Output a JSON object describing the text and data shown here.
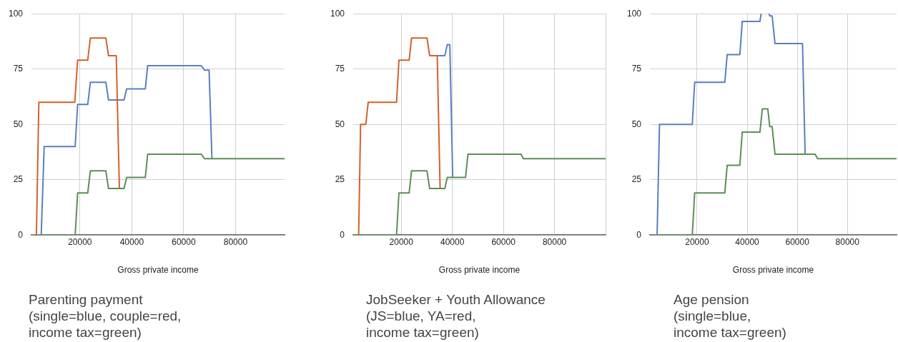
{
  "chart_data": [
    {
      "type": "line",
      "title": "Parenting payment\n(single=blue, couple=red,\nincome tax=green)",
      "xlabel": "Gross private income",
      "xlim": [
        1300,
        98900
      ],
      "xticks": [
        20000,
        40000,
        60000,
        80000
      ],
      "ylim": [
        0,
        100
      ],
      "yticks": [
        0,
        25,
        50,
        75,
        100
      ],
      "grid": true,
      "legend": false,
      "marker": "none",
      "line_style": "solid",
      "series": [
        {
          "color": "#5a7fc0",
          "x": [
            1300,
            5060,
            6200,
            18150,
            19100,
            23000,
            24000,
            30000,
            31000,
            37000,
            38000,
            45200,
            46100,
            66800,
            68000,
            69800,
            70900
          ],
          "values": [
            0,
            0,
            40,
            40,
            59,
            59,
            69,
            69,
            61,
            61,
            66,
            66,
            76.5,
            76.5,
            74.5,
            74.5,
            34.5
          ]
        },
        {
          "color": "#d2622a",
          "x": [
            1300,
            3200,
            4140,
            18000,
            19100,
            23000,
            24000,
            30000,
            31000,
            34000,
            35200
          ],
          "values": [
            0,
            0,
            60,
            60,
            79,
            79,
            89,
            89,
            81,
            81,
            21
          ]
        },
        {
          "color": "#5b8f55",
          "x": [
            1300,
            18150,
            19100,
            23000,
            24000,
            30000,
            31000,
            37000,
            38000,
            45200,
            46100,
            66800,
            68000,
            98900
          ],
          "values": [
            0,
            0,
            19,
            19,
            29,
            29,
            21,
            21,
            26,
            26,
            36.5,
            36.5,
            34.5,
            34.5
          ]
        }
      ]
    },
    {
      "type": "line",
      "title": "JobSeeker + Youth Allowance\n(JS=blue, YA=red,\nincome tax=green)",
      "xlabel": "Gross private income",
      "xlim": [
        1170,
        100000
      ],
      "xticks": [
        20000,
        40000,
        60000,
        80000,
        {
          "value": 100000,
          "label": null
        }
      ],
      "ylim": [
        0,
        100
      ],
      "yticks": [
        0,
        25,
        50,
        75,
        100
      ],
      "grid": true,
      "legend": false,
      "marker": "none",
      "line_style": "solid",
      "series": [
        {
          "color": "#5a7fc0",
          "x": [
            34070,
            37050,
            38000,
            39000,
            40130
          ],
          "values": [
            81,
            81,
            86,
            86,
            26
          ]
        },
        {
          "color": "#d2622a",
          "x": [
            1170,
            3300,
            4060,
            6100,
            7040,
            18140,
            19070,
            23080,
            24000,
            30070,
            31100,
            34070,
            35200
          ],
          "values": [
            0,
            0,
            50,
            50,
            60,
            60,
            79,
            79,
            89,
            89,
            81,
            81,
            21
          ]
        },
        {
          "color": "#5b8f55",
          "x": [
            1170,
            18140,
            19070,
            23080,
            24000,
            30070,
            31100,
            37050,
            38000,
            45160,
            46100,
            66880,
            67810,
            100000
          ],
          "values": [
            0,
            0,
            19,
            19,
            29,
            29,
            21,
            21,
            26,
            26,
            36.5,
            36.5,
            34.5,
            34.5
          ]
        }
      ]
    },
    {
      "type": "line",
      "title": "Age pension\n(single=blue,\nincome tax=green)",
      "xlabel": "Gross private income",
      "xlim": [
        1200,
        99600
      ],
      "xticks": [
        20000,
        40000,
        60000,
        80000
      ],
      "ylim": [
        0,
        100
      ],
      "yticks": [
        0,
        25,
        50,
        75,
        100
      ],
      "grid": true,
      "legend": false,
      "marker": "none",
      "line_style": "solid",
      "series": [
        {
          "color": "#5a7fc0",
          "x": [
            1200,
            4070,
            5020,
            18100,
            19050,
            31070,
            32020,
            37080,
            38030,
            45090,
            45570,
            47000,
            48720,
            49000,
            49960,
            51100,
            62070,
            63120
          ],
          "values": [
            0,
            0,
            50,
            50,
            69,
            69,
            81.5,
            81.5,
            96.5,
            96.5,
            100,
            null,
            100,
            99,
            99,
            86.5,
            86.5,
            36.5
          ]
        },
        {
          "color": "#5b8f55",
          "x": [
            1200,
            18100,
            19050,
            31070,
            32020,
            37080,
            38030,
            45090,
            46040,
            48240,
            49000,
            49960,
            51100,
            67130,
            68080,
            99600
          ],
          "values": [
            0,
            0,
            19,
            19,
            31.5,
            31.5,
            46.5,
            46.5,
            57,
            57,
            49,
            49,
            36.5,
            36.5,
            34.5,
            34.5
          ]
        }
      ]
    }
  ]
}
